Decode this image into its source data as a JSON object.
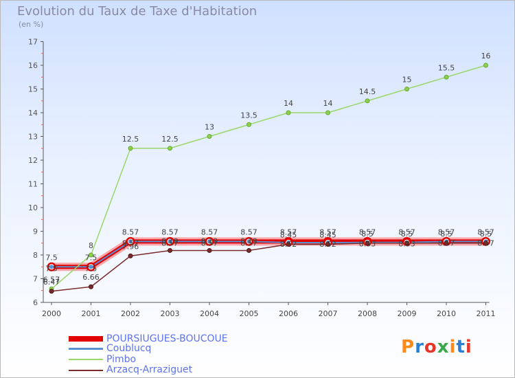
{
  "header": {
    "title": "Evolution du Taux de Taxe d'Habitation",
    "unit": "(en %)"
  },
  "brand": {
    "logo_text": "Proxiti"
  },
  "colors": {
    "red": "#e00000",
    "blue": "#5a8fd0",
    "green": "#9bd66a",
    "brown": "#7a2a2a"
  },
  "chart_data": {
    "type": "line",
    "title": "Evolution du Taux de Taxe d'Habitation",
    "ylabel": "(en %)",
    "xlabel": "",
    "x": [
      "2000",
      "2001",
      "2002",
      "2003",
      "2004",
      "2005",
      "2006",
      "2007",
      "2008",
      "2009",
      "2010",
      "2011"
    ],
    "ylim": [
      6,
      17
    ],
    "yticks": [
      "6",
      "7",
      "8",
      "9",
      "10",
      "11",
      "12",
      "13",
      "14",
      "15",
      "16",
      "17"
    ],
    "grid": false,
    "legend_position": "bottom-left",
    "series": [
      {
        "name": "POURSIUGUES-BOUCOUE",
        "values": [
          7.5,
          7.5,
          8.57,
          8.57,
          8.57,
          8.57,
          8.57,
          8.57,
          8.57,
          8.57,
          8.57,
          8.57
        ],
        "labels": [
          "7.5",
          "7.5",
          "8.57",
          "8.57",
          "8.57",
          "8.57",
          "8.57",
          "8.57",
          "8.57",
          "8.57",
          "8.57",
          "8.57"
        ]
      },
      {
        "name": "Coublucq",
        "values": [
          7.5,
          7.5,
          8.57,
          8.57,
          8.57,
          8.57,
          8.52,
          8.52,
          8.53,
          8.53,
          8.57,
          8.57
        ],
        "labels": [
          "7.5",
          "7.5",
          "8.57",
          "8.57",
          "8.57",
          "8.57",
          "8.52",
          "8.52",
          "8.53",
          "8.53",
          "8.57",
          "8.57"
        ]
      },
      {
        "name": "Pimbo",
        "values": [
          6.57,
          8,
          12.5,
          12.5,
          13,
          13.5,
          14,
          14,
          14.5,
          15,
          15.5,
          16
        ],
        "labels": [
          "6.57",
          "8",
          "12.5",
          "12.5",
          "13",
          "13.5",
          "14",
          "14",
          "14.5",
          "15",
          "15.5",
          "16"
        ]
      },
      {
        "name": "Arzacq-Arraziguet",
        "values": [
          6.47,
          6.66,
          7.96,
          8.19,
          8.19,
          8.19,
          8.45,
          8.45,
          8.5,
          8.5,
          8.5,
          8.5
        ],
        "labels": [
          "6.47",
          "6.66",
          "7.96",
          "8.19",
          "8.19",
          "8.19",
          "8.45",
          "8.45",
          "8.5",
          "8.5",
          "8.5",
          "8.5"
        ]
      }
    ]
  }
}
